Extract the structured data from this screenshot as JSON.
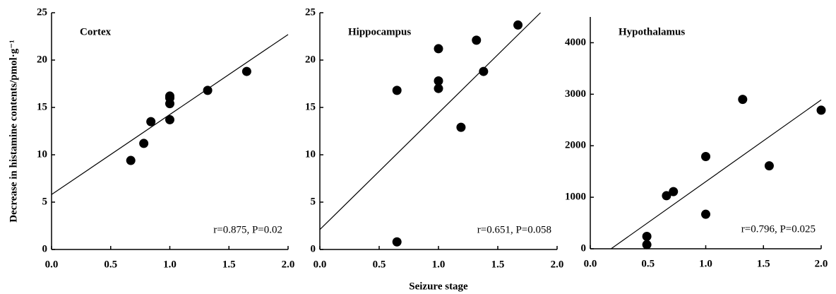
{
  "chart_data": [
    {
      "type": "scatter",
      "title": "Cortex",
      "ylabel": "Decrease in histamine contents/pmol·g⁻¹",
      "x": [
        0.67,
        0.78,
        0.84,
        1.0,
        1.0,
        1.0,
        1.0,
        1.32,
        1.65
      ],
      "y": [
        9.4,
        11.2,
        13.5,
        13.7,
        15.4,
        16.0,
        16.2,
        16.8,
        18.8
      ],
      "trendline": {
        "x": [
          0,
          2
        ],
        "y": [
          5.8,
          22.7
        ]
      },
      "annotation": "r=0.875, P=0.02",
      "xlim": [
        0,
        2
      ],
      "ylim": [
        0,
        25
      ],
      "xticks": [
        {
          "value": 0,
          "label": "0.0"
        },
        {
          "value": 0.5,
          "label": "0.5"
        },
        {
          "value": 1,
          "label": "1.0"
        },
        {
          "value": 1.5,
          "label": "1.5"
        },
        {
          "value": 2,
          "label": "2.0"
        }
      ],
      "yticks": [
        0,
        5,
        10,
        15,
        20,
        25
      ],
      "color": "#000000"
    },
    {
      "type": "scatter",
      "title": "Hippocampus",
      "xlabel": "Seizure stage",
      "x": [
        0.65,
        0.65,
        1.0,
        1.0,
        1.0,
        1.19,
        1.32,
        1.38,
        1.67
      ],
      "y": [
        0.8,
        16.8,
        17.0,
        17.8,
        21.2,
        12.9,
        22.1,
        18.8,
        23.7
      ],
      "trendline": {
        "x": [
          0,
          1.86
        ],
        "y": [
          2.1,
          25
        ]
      },
      "annotation": "r=0.651, P=0.058",
      "xlim": [
        0,
        2
      ],
      "ylim": [
        0,
        25
      ],
      "xticks": [
        {
          "value": 0,
          "label": "0.0"
        },
        {
          "value": 0.5,
          "label": "0.5"
        },
        {
          "value": 1,
          "label": "1.0"
        },
        {
          "value": 1.5,
          "label": "1.5"
        },
        {
          "value": 2,
          "label": "2.0"
        }
      ],
      "yticks": [
        0,
        5,
        10,
        15,
        20,
        25
      ],
      "color": "#000000"
    },
    {
      "type": "scatter",
      "title": "Hypothalamus",
      "x": [
        0.49,
        0.49,
        0.66,
        0.72,
        1.0,
        1.0,
        1.32,
        1.55,
        2.0
      ],
      "y": [
        80,
        240,
        1030,
        1110,
        670,
        1790,
        2900,
        1610,
        2690
      ],
      "trendline": {
        "x": [
          0.18,
          2.0
        ],
        "y": [
          0,
          2890
        ]
      },
      "annotation": "r=0.796, P=0.025",
      "xlim": [
        0,
        2
      ],
      "ylim": [
        0,
        4500
      ],
      "xticks": [
        {
          "value": 0,
          "label": "0.0"
        },
        {
          "value": 0.5,
          "label": "0.5"
        },
        {
          "value": 1,
          "label": "1.0"
        },
        {
          "value": 1.5,
          "label": "1.5"
        },
        {
          "value": 2,
          "label": "2.0"
        }
      ],
      "yticks": [
        0,
        1000,
        2000,
        3000,
        4000
      ],
      "color": "#000000"
    }
  ]
}
